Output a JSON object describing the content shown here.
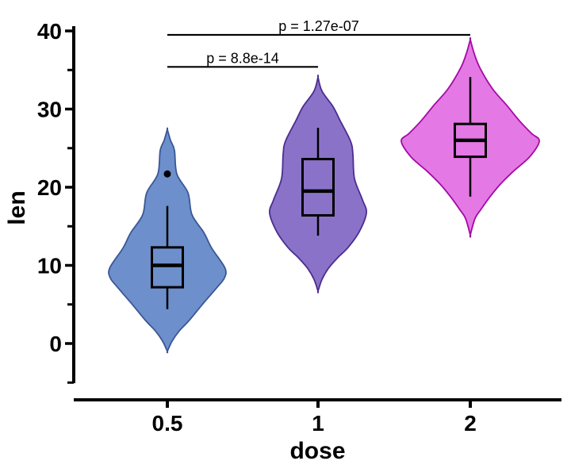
{
  "figure": {
    "background": "#ffffff",
    "axis_color": "#000000",
    "box_color": "#000000"
  },
  "chart_data": {
    "type": "violin",
    "title": "",
    "xlabel": "dose",
    "ylabel": "len",
    "x_categories": [
      "0.5",
      "1",
      "2"
    ],
    "y_ticks_major": [
      40,
      30,
      20,
      10,
      0
    ],
    "y_ticks_minor": [
      35,
      25,
      15,
      5,
      -5
    ],
    "ylim": [
      -5,
      41
    ],
    "grid": false,
    "legend": "none",
    "groups": [
      {
        "dose": "0.5",
        "fill": "#6D8FCB",
        "stroke": "#3A5795",
        "center_x": 211,
        "box": {
          "whisker_low": 4.4,
          "q1": 7.2,
          "median": 10.0,
          "q3": 12.3,
          "whisker_high": 17.6
        },
        "outliers": [
          21.7
        ],
        "violin_profile": [
          [
            27.4,
            0
          ],
          [
            26.0,
            4
          ],
          [
            24.7,
            9
          ],
          [
            21.7,
            12
          ],
          [
            19.3,
            26
          ],
          [
            16.5,
            31
          ],
          [
            14.2,
            46
          ],
          [
            12.2,
            56
          ],
          [
            9.7,
            72.5
          ],
          [
            8.4,
            72
          ],
          [
            7.1,
            62
          ],
          [
            5.1,
            45
          ],
          [
            3.0,
            28
          ],
          [
            1.6,
            15
          ],
          [
            0.3,
            6
          ],
          [
            -1.0,
            0
          ]
        ]
      },
      {
        "dose": "1",
        "fill": "#8B72C9",
        "stroke": "#4B2D8F",
        "center_x": 401,
        "box": {
          "whisker_low": 13.8,
          "q1": 16.4,
          "median": 19.5,
          "q3": 23.6,
          "whisker_high": 27.6
        },
        "outliers": [],
        "violin_profile": [
          [
            34.1,
            0
          ],
          [
            32.3,
            5
          ],
          [
            30.3,
            19
          ],
          [
            28.5,
            28
          ],
          [
            25.9,
            41
          ],
          [
            24.2,
            44
          ],
          [
            21.1,
            46
          ],
          [
            18.4,
            56
          ],
          [
            16.7,
            61
          ],
          [
            14.3,
            52
          ],
          [
            12.3,
            38
          ],
          [
            11.0,
            25
          ],
          [
            9.6,
            13
          ],
          [
            8.2,
            5
          ],
          [
            6.7,
            0
          ]
        ]
      },
      {
        "dose": "2",
        "fill": "#E478E4",
        "stroke": "#A40AA4",
        "center_x": 593,
        "box": {
          "whisker_low": 18.8,
          "q1": 23.9,
          "median": 26.0,
          "q3": 28.1,
          "whisker_high": 34.1
        },
        "outliers": [],
        "violin_profile": [
          [
            38.9,
            0
          ],
          [
            37.1,
            5
          ],
          [
            35.3,
            12
          ],
          [
            32.6,
            28
          ],
          [
            30.6,
            45
          ],
          [
            28.5,
            62
          ],
          [
            26.9,
            77
          ],
          [
            25.9,
            87
          ],
          [
            23.9,
            75
          ],
          [
            22.1,
            55
          ],
          [
            20.4,
            38
          ],
          [
            18.8,
            25
          ],
          [
            17.1,
            13
          ],
          [
            16.0,
            6
          ],
          [
            13.9,
            0
          ]
        ]
      }
    ],
    "comparisons": [
      {
        "label": "p = 8.8e-14",
        "x1": "0.5",
        "x2": "1",
        "y": 35.4
      },
      {
        "label": "p = 1.27e-07",
        "x1": "0.5",
        "x2": "2",
        "y": 39.5
      }
    ]
  }
}
